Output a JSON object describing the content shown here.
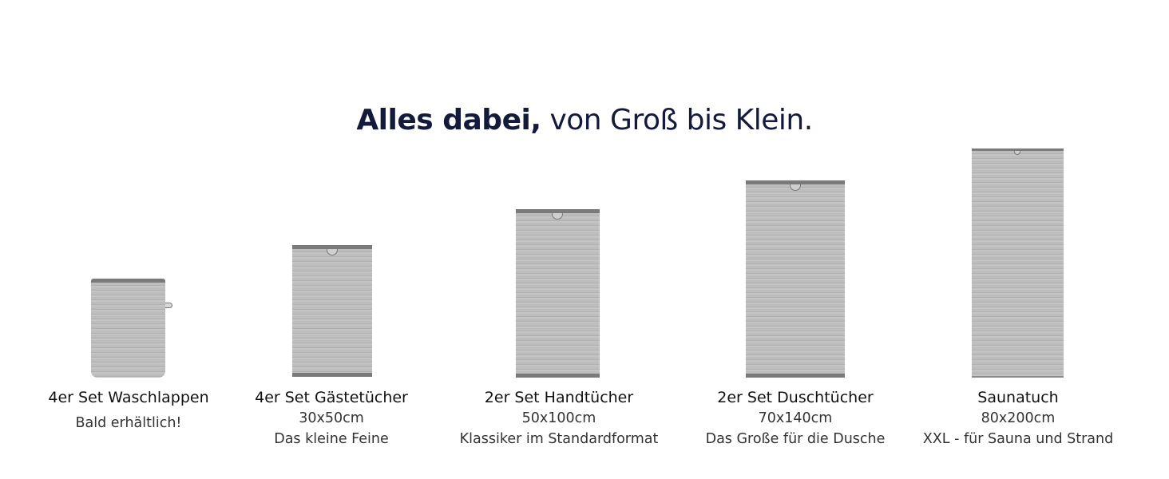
{
  "headline": {
    "bold": "Alles dabei,",
    "light": "von Groß bis Klein."
  },
  "products": [
    {
      "title": "4er Set Waschlappen",
      "size": "",
      "note": "Bald erhältlich!"
    },
    {
      "title": "4er Set Gästetücher",
      "size": "30x50cm",
      "note": "Das kleine Feine"
    },
    {
      "title": "2er Set Handtücher",
      "size": "50x100cm",
      "note": "Klassiker im Standardformat"
    },
    {
      "title": "2er Set Duschtücher",
      "size": "70x140cm",
      "note": "Das Große für die Dusche"
    },
    {
      "title": "Saunatuch",
      "size": "80x200cm",
      "note": "XXL - für Sauna und Strand"
    }
  ],
  "colors": {
    "headline": "#131a3a",
    "towel": "#bdbdbd",
    "hem": "#7a7a7a"
  },
  "icons": [
    "towel-loop-icon"
  ]
}
